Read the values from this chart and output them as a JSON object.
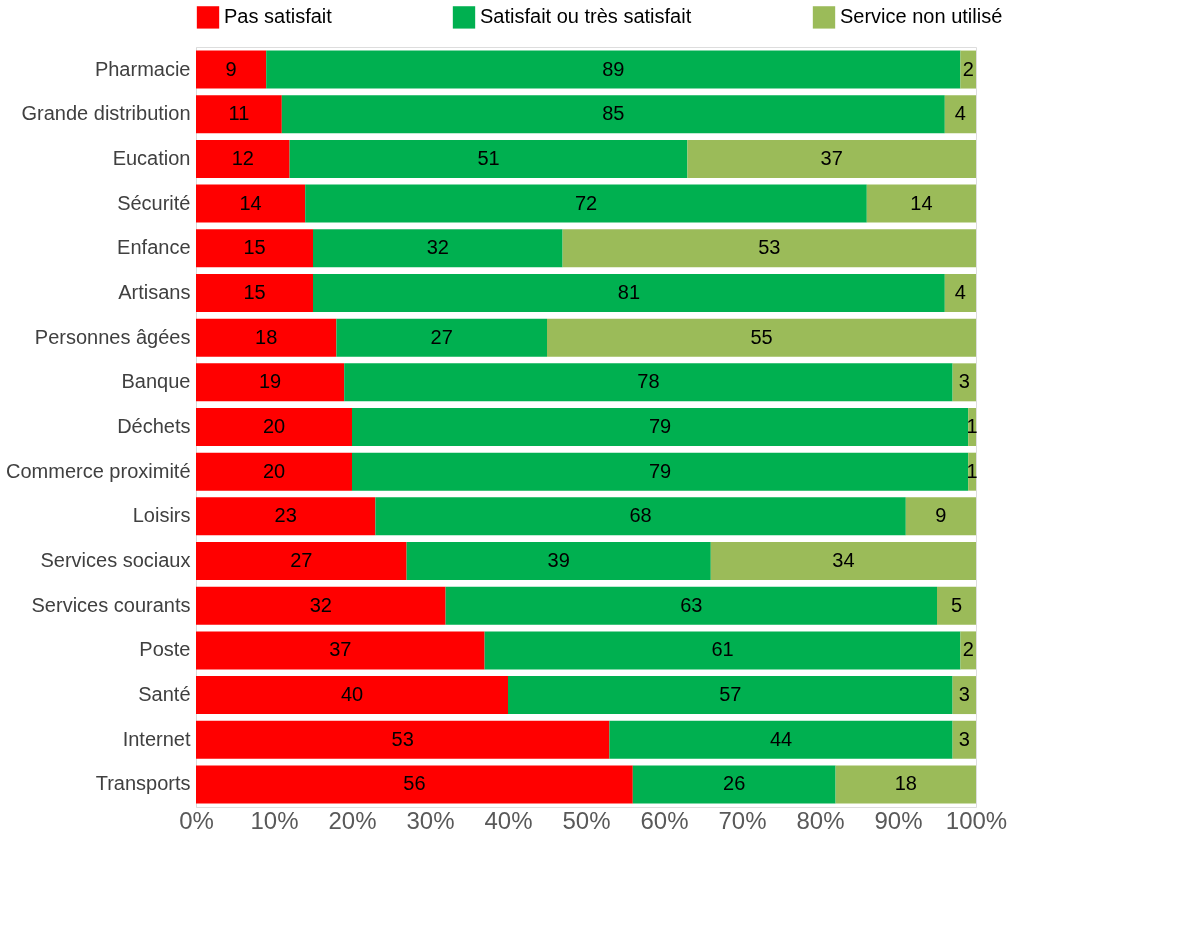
{
  "chart_data": {
    "type": "bar",
    "orientation": "horizontal",
    "stacked": true,
    "data_labels": true,
    "legend": "top",
    "grid": false,
    "categories": [
      "Pharmacie",
      "Grande distribution",
      "Eucation",
      "Sécurité",
      "Enfance",
      "Artisans",
      "Personnes âgées",
      "Banque",
      "Déchets",
      "Commerce proximité",
      "Loisirs",
      "Services sociaux",
      "Services courants",
      "Poste",
      "Santé",
      "Internet",
      "Transports"
    ],
    "series": [
      {
        "name": "Pas satisfait",
        "color": "#ff0000",
        "values": [
          9,
          11,
          12,
          14,
          15,
          15,
          18,
          19,
          20,
          20,
          23,
          27,
          32,
          37,
          40,
          53,
          56
        ]
      },
      {
        "name": "Satisfait ou très satisfait",
        "color": "#00b050",
        "values": [
          89,
          85,
          51,
          72,
          32,
          81,
          27,
          78,
          79,
          79,
          68,
          39,
          63,
          61,
          57,
          44,
          26
        ]
      },
      {
        "name": "Service non utilisé",
        "color": "#9bbb59",
        "values": [
          2,
          4,
          37,
          14,
          53,
          4,
          55,
          3,
          1,
          1,
          9,
          34,
          5,
          2,
          3,
          3,
          18
        ]
      }
    ],
    "xlim": [
      0,
      100
    ],
    "xticks": [
      {
        "value": 0,
        "label": "0%"
      },
      {
        "value": 10,
        "label": "10%"
      },
      {
        "value": 20,
        "label": "20%"
      },
      {
        "value": 30,
        "label": "30%"
      },
      {
        "value": 40,
        "label": "40%"
      },
      {
        "value": 50,
        "label": "50%"
      },
      {
        "value": 60,
        "label": "60%"
      },
      {
        "value": 70,
        "label": "70%"
      },
      {
        "value": 80,
        "label": "80%"
      },
      {
        "value": 90,
        "label": "90%"
      },
      {
        "value": 100,
        "label": "100%"
      }
    ]
  }
}
